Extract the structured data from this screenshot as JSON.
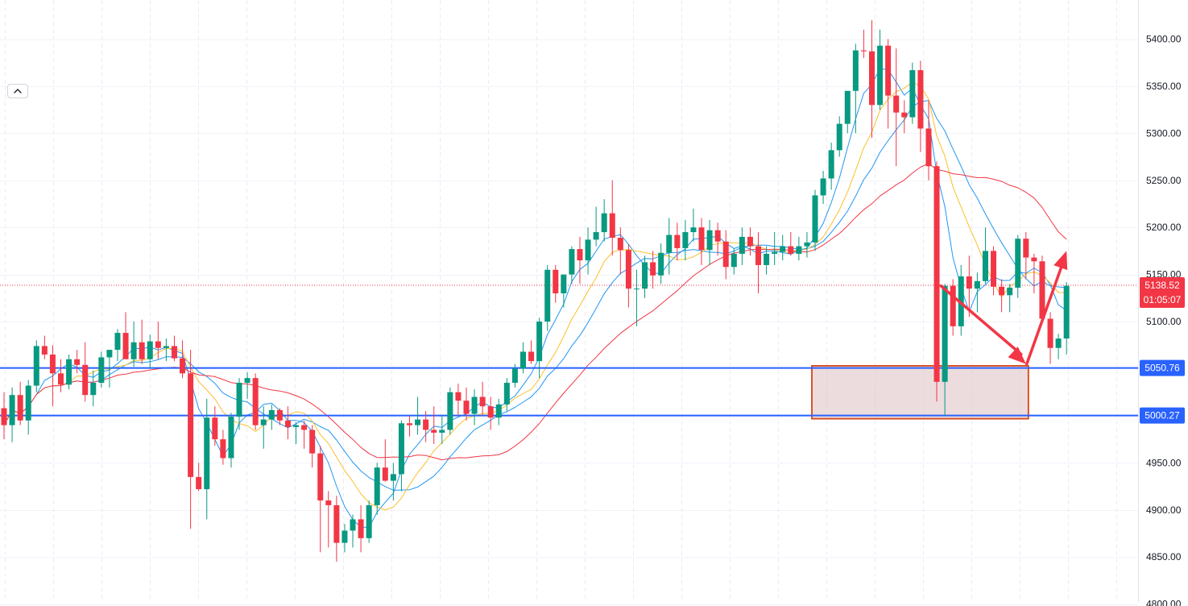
{
  "chart_data": {
    "type": "candlestick",
    "ylim": [
      4800,
      5440
    ],
    "y_ticks": [
      "5400.00",
      "5350.00",
      "5300.00",
      "5250.00",
      "5200.00",
      "5150.00",
      "5100.00",
      "5050.00",
      "5000.00",
      "4950.00",
      "4900.00",
      "4850.00",
      "4800.00"
    ],
    "grid": true,
    "current_price": {
      "label": "5138.52",
      "value": 5138.52,
      "countdown": "01:05:07",
      "color": "#f23645"
    },
    "levels": [
      {
        "label": "5050.76",
        "value": 5050.76,
        "color": "#2962ff"
      },
      {
        "label": "5000.27",
        "value": 5000.27,
        "color": "#2962ff"
      }
    ],
    "zone": {
      "low": 5000.27,
      "high": 5053,
      "from_index": 100,
      "to_index": 126,
      "fill": "#dfc4c6",
      "stroke": "#d84315"
    },
    "forecast_path": [
      {
        "index": 115.5,
        "price": 5138
      },
      {
        "index": 126,
        "price": 5055
      },
      {
        "index": 131,
        "price": 5175
      }
    ],
    "colors": {
      "up": "#089981",
      "down": "#f23645",
      "arrow": "#f23645",
      "ma_fast": "#2196f3",
      "ma_mid": "#2196f3",
      "ma_slow": "#fbc02d",
      "ma_long": "#f23645"
    },
    "candles": [
      {
        "o": 5008,
        "h": 5025,
        "l": 4975,
        "c": 4990
      },
      {
        "o": 4990,
        "h": 5030,
        "l": 4972,
        "c": 5022
      },
      {
        "o": 5022,
        "h": 5036,
        "l": 4990,
        "c": 4995
      },
      {
        "o": 4995,
        "h": 5038,
        "l": 4980,
        "c": 5032
      },
      {
        "o": 5032,
        "h": 5080,
        "l": 5025,
        "c": 5074
      },
      {
        "o": 5074,
        "h": 5085,
        "l": 5060,
        "c": 5065
      },
      {
        "o": 5065,
        "h": 5075,
        "l": 5010,
        "c": 5045
      },
      {
        "o": 5045,
        "h": 5060,
        "l": 5025,
        "c": 5033
      },
      {
        "o": 5033,
        "h": 5065,
        "l": 5028,
        "c": 5060
      },
      {
        "o": 5060,
        "h": 5070,
        "l": 5045,
        "c": 5054
      },
      {
        "o": 5054,
        "h": 5078,
        "l": 5015,
        "c": 5022
      },
      {
        "o": 5022,
        "h": 5048,
        "l": 5010,
        "c": 5035
      },
      {
        "o": 5035,
        "h": 5068,
        "l": 5030,
        "c": 5062
      },
      {
        "o": 5062,
        "h": 5070,
        "l": 5030,
        "c": 5070
      },
      {
        "o": 5070,
        "h": 5092,
        "l": 5058,
        "c": 5088
      },
      {
        "o": 5088,
        "h": 5110,
        "l": 5065,
        "c": 5060
      },
      {
        "o": 5060,
        "h": 5100,
        "l": 5052,
        "c": 5078
      },
      {
        "o": 5078,
        "h": 5102,
        "l": 5055,
        "c": 5060
      },
      {
        "o": 5060,
        "h": 5086,
        "l": 5050,
        "c": 5079
      },
      {
        "o": 5079,
        "h": 5100,
        "l": 5060,
        "c": 5072
      },
      {
        "o": 5072,
        "h": 5082,
        "l": 5058,
        "c": 5074
      },
      {
        "o": 5074,
        "h": 5085,
        "l": 5058,
        "c": 5061
      },
      {
        "o": 5061,
        "h": 5080,
        "l": 5040,
        "c": 5045
      },
      {
        "o": 5045,
        "h": 5070,
        "l": 4880,
        "c": 4935
      },
      {
        "o": 4935,
        "h": 4950,
        "l": 4920,
        "c": 4922
      },
      {
        "o": 4922,
        "h": 5018,
        "l": 4890,
        "c": 4998
      },
      {
        "o": 4998,
        "h": 5010,
        "l": 4968,
        "c": 4975
      },
      {
        "o": 4975,
        "h": 4985,
        "l": 4948,
        "c": 4955
      },
      {
        "o": 4955,
        "h": 5003,
        "l": 4945,
        "c": 4999
      },
      {
        "o": 4999,
        "h": 5040,
        "l": 4985,
        "c": 5035
      },
      {
        "o": 5035,
        "h": 5046,
        "l": 5018,
        "c": 5040
      },
      {
        "o": 5040,
        "h": 5045,
        "l": 4985,
        "c": 4990
      },
      {
        "o": 4990,
        "h": 5010,
        "l": 4965,
        "c": 4996
      },
      {
        "o": 4996,
        "h": 5012,
        "l": 4985,
        "c": 5006
      },
      {
        "o": 5006,
        "h": 5008,
        "l": 4990,
        "c": 4995
      },
      {
        "o": 4995,
        "h": 5010,
        "l": 4975,
        "c": 4988
      },
      {
        "o": 4988,
        "h": 4993,
        "l": 4970,
        "c": 4990
      },
      {
        "o": 4990,
        "h": 4995,
        "l": 4965,
        "c": 4985
      },
      {
        "o": 4985,
        "h": 4990,
        "l": 4945,
        "c": 4960
      },
      {
        "o": 4960,
        "h": 4968,
        "l": 4855,
        "c": 4910
      },
      {
        "o": 4910,
        "h": 4920,
        "l": 4860,
        "c": 4905
      },
      {
        "o": 4905,
        "h": 4915,
        "l": 4845,
        "c": 4865
      },
      {
        "o": 4865,
        "h": 4885,
        "l": 4855,
        "c": 4878
      },
      {
        "o": 4878,
        "h": 4895,
        "l": 4860,
        "c": 4890
      },
      {
        "o": 4890,
        "h": 4905,
        "l": 4855,
        "c": 4870
      },
      {
        "o": 4870,
        "h": 4910,
        "l": 4865,
        "c": 4905
      },
      {
        "o": 4905,
        "h": 4950,
        "l": 4895,
        "c": 4945
      },
      {
        "o": 4945,
        "h": 4975,
        "l": 4930,
        "c": 4931
      },
      {
        "o": 4931,
        "h": 4950,
        "l": 4910,
        "c": 4938
      },
      {
        "o": 4938,
        "h": 4995,
        "l": 4920,
        "c": 4992
      },
      {
        "o": 4992,
        "h": 5000,
        "l": 4978,
        "c": 4990
      },
      {
        "o": 4990,
        "h": 5020,
        "l": 4980,
        "c": 4996
      },
      {
        "o": 4996,
        "h": 5005,
        "l": 4972,
        "c": 4985
      },
      {
        "o": 4985,
        "h": 5010,
        "l": 4970,
        "c": 4982
      },
      {
        "o": 4982,
        "h": 5000,
        "l": 4970,
        "c": 4985
      },
      {
        "o": 4985,
        "h": 5030,
        "l": 4980,
        "c": 5025
      },
      {
        "o": 5025,
        "h": 5034,
        "l": 5000,
        "c": 5016
      },
      {
        "o": 5016,
        "h": 5030,
        "l": 4995,
        "c": 5002
      },
      {
        "o": 5002,
        "h": 5028,
        "l": 4990,
        "c": 5020
      },
      {
        "o": 5020,
        "h": 5036,
        "l": 5000,
        "c": 5010
      },
      {
        "o": 5010,
        "h": 5020,
        "l": 4985,
        "c": 4998
      },
      {
        "o": 4998,
        "h": 5018,
        "l": 4990,
        "c": 5012
      },
      {
        "o": 5012,
        "h": 5040,
        "l": 5005,
        "c": 5035
      },
      {
        "o": 5035,
        "h": 5055,
        "l": 5030,
        "c": 5050
      },
      {
        "o": 5050,
        "h": 5078,
        "l": 5045,
        "c": 5068
      },
      {
        "o": 5068,
        "h": 5080,
        "l": 5055,
        "c": 5058
      },
      {
        "o": 5058,
        "h": 5104,
        "l": 5040,
        "c": 5100
      },
      {
        "o": 5100,
        "h": 5160,
        "l": 5090,
        "c": 5155
      },
      {
        "o": 5155,
        "h": 5160,
        "l": 5120,
        "c": 5130
      },
      {
        "o": 5130,
        "h": 5145,
        "l": 5115,
        "c": 5150
      },
      {
        "o": 5150,
        "h": 5180,
        "l": 5140,
        "c": 5177
      },
      {
        "o": 5177,
        "h": 5190,
        "l": 5140,
        "c": 5165
      },
      {
        "o": 5165,
        "h": 5200,
        "l": 5150,
        "c": 5187
      },
      {
        "o": 5187,
        "h": 5222,
        "l": 5180,
        "c": 5195
      },
      {
        "o": 5195,
        "h": 5230,
        "l": 5185,
        "c": 5215
      },
      {
        "o": 5215,
        "h": 5250,
        "l": 5170,
        "c": 5189
      },
      {
        "o": 5189,
        "h": 5200,
        "l": 5150,
        "c": 5176
      },
      {
        "o": 5176,
        "h": 5182,
        "l": 5115,
        "c": 5135
      },
      {
        "o": 5135,
        "h": 5155,
        "l": 5095,
        "c": 5135
      },
      {
        "o": 5135,
        "h": 5170,
        "l": 5125,
        "c": 5163
      },
      {
        "o": 5163,
        "h": 5175,
        "l": 5135,
        "c": 5149
      },
      {
        "o": 5149,
        "h": 5183,
        "l": 5140,
        "c": 5173
      },
      {
        "o": 5173,
        "h": 5210,
        "l": 5150,
        "c": 5192
      },
      {
        "o": 5192,
        "h": 5205,
        "l": 5165,
        "c": 5178
      },
      {
        "o": 5178,
        "h": 5208,
        "l": 5165,
        "c": 5195
      },
      {
        "o": 5195,
        "h": 5220,
        "l": 5185,
        "c": 5200
      },
      {
        "o": 5200,
        "h": 5210,
        "l": 5160,
        "c": 5176
      },
      {
        "o": 5176,
        "h": 5208,
        "l": 5160,
        "c": 5197
      },
      {
        "o": 5197,
        "h": 5205,
        "l": 5170,
        "c": 5185
      },
      {
        "o": 5185,
        "h": 5197,
        "l": 5145,
        "c": 5158
      },
      {
        "o": 5158,
        "h": 5178,
        "l": 5150,
        "c": 5172
      },
      {
        "o": 5172,
        "h": 5200,
        "l": 5160,
        "c": 5190
      },
      {
        "o": 5190,
        "h": 5200,
        "l": 5170,
        "c": 5180
      },
      {
        "o": 5180,
        "h": 5195,
        "l": 5130,
        "c": 5160
      },
      {
        "o": 5160,
        "h": 5180,
        "l": 5150,
        "c": 5172
      },
      {
        "o": 5172,
        "h": 5195,
        "l": 5160,
        "c": 5174
      },
      {
        "o": 5174,
        "h": 5192,
        "l": 5165,
        "c": 5180
      },
      {
        "o": 5180,
        "h": 5195,
        "l": 5170,
        "c": 5172
      },
      {
        "o": 5172,
        "h": 5190,
        "l": 5165,
        "c": 5180
      },
      {
        "o": 5180,
        "h": 5195,
        "l": 5168,
        "c": 5184
      },
      {
        "o": 5184,
        "h": 5240,
        "l": 5175,
        "c": 5234
      },
      {
        "o": 5234,
        "h": 5260,
        "l": 5225,
        "c": 5252
      },
      {
        "o": 5252,
        "h": 5290,
        "l": 5240,
        "c": 5282
      },
      {
        "o": 5282,
        "h": 5318,
        "l": 5275,
        "c": 5310
      },
      {
        "o": 5310,
        "h": 5345,
        "l": 5300,
        "c": 5345
      },
      {
        "o": 5345,
        "h": 5395,
        "l": 5300,
        "c": 5388
      },
      {
        "o": 5388,
        "h": 5410,
        "l": 5380,
        "c": 5387
      },
      {
        "o": 5387,
        "h": 5420,
        "l": 5295,
        "c": 5330
      },
      {
        "o": 5330,
        "h": 5410,
        "l": 5325,
        "c": 5393
      },
      {
        "o": 5393,
        "h": 5400,
        "l": 5305,
        "c": 5340
      },
      {
        "o": 5340,
        "h": 5390,
        "l": 5265,
        "c": 5322
      },
      {
        "o": 5322,
        "h": 5335,
        "l": 5300,
        "c": 5317
      },
      {
        "o": 5317,
        "h": 5375,
        "l": 5310,
        "c": 5367
      },
      {
        "o": 5367,
        "h": 5377,
        "l": 5280,
        "c": 5305
      },
      {
        "o": 5305,
        "h": 5335,
        "l": 5250,
        "c": 5265
      },
      {
        "o": 5265,
        "h": 5270,
        "l": 5015,
        "c": 5036
      },
      {
        "o": 5036,
        "h": 5140,
        "l": 5000,
        "c": 5138
      },
      {
        "o": 5138,
        "h": 5145,
        "l": 5085,
        "c": 5095
      },
      {
        "o": 5095,
        "h": 5160,
        "l": 5085,
        "c": 5148
      },
      {
        "o": 5148,
        "h": 5170,
        "l": 5105,
        "c": 5135
      },
      {
        "o": 5135,
        "h": 5152,
        "l": 5110,
        "c": 5143
      },
      {
        "o": 5143,
        "h": 5200,
        "l": 5140,
        "c": 5175
      },
      {
        "o": 5175,
        "h": 5180,
        "l": 5128,
        "c": 5137
      },
      {
        "o": 5137,
        "h": 5145,
        "l": 5110,
        "c": 5128
      },
      {
        "o": 5128,
        "h": 5140,
        "l": 5110,
        "c": 5136
      },
      {
        "o": 5136,
        "h": 5192,
        "l": 5125,
        "c": 5188
      },
      {
        "o": 5188,
        "h": 5195,
        "l": 5145,
        "c": 5168
      },
      {
        "o": 5168,
        "h": 5172,
        "l": 5130,
        "c": 5164
      },
      {
        "o": 5164,
        "h": 5170,
        "l": 5100,
        "c": 5103
      },
      {
        "o": 5103,
        "h": 5110,
        "l": 5055,
        "c": 5072
      },
      {
        "o": 5072,
        "h": 5087,
        "l": 5060,
        "c": 5082
      },
      {
        "o": 5082,
        "h": 5142,
        "l": 5065,
        "c": 5138
      }
    ]
  }
}
